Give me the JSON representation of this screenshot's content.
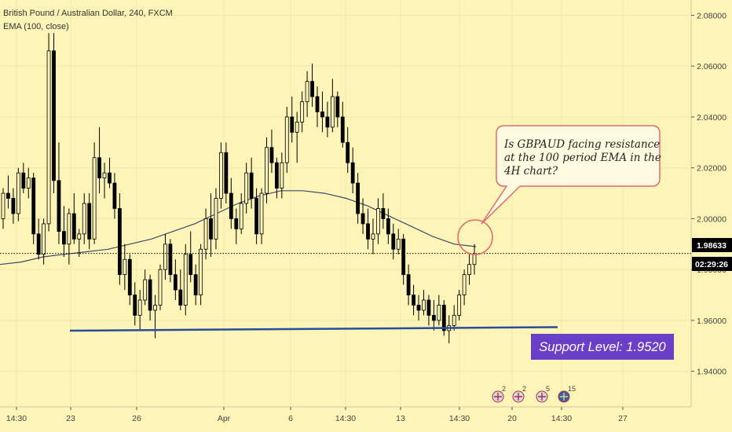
{
  "legend": {
    "symbol_line": "British Pound / Australian Dollar, 240, FXCM",
    "indicator_line": "EMA (100, close)"
  },
  "price_axis": {
    "ticks": [
      "2.08000",
      "2.06000",
      "2.04000",
      "2.02000",
      "2.00000",
      "1.98000",
      "1.96000",
      "1.94000"
    ],
    "current_price_label": "1.98633",
    "countdown_label": "02:29:26"
  },
  "time_axis": {
    "ticks": [
      "14:30",
      "23",
      "26",
      "Apr",
      "6",
      "14:30",
      "13",
      "14:30",
      "20",
      "14:30",
      "27"
    ]
  },
  "callout": {
    "lines": [
      "Is GBPAUD facing resistance",
      "at the 100 period EMA in the",
      "4H chart?"
    ]
  },
  "support_label": "Support Level: 1.9520",
  "event_markers": [
    "2",
    "2",
    "5",
    "15"
  ],
  "colors": {
    "background": "#fdf4b8",
    "candle": "#000000",
    "ema": "#3d4a6b",
    "support_line": "#2b4c9c",
    "support_box": "#6a3ec7",
    "callout_border": "#e06b6b",
    "price_line": "#000000",
    "axis_tag": "#000000"
  },
  "chart_data": {
    "type": "candlestick",
    "title": "British Pound / Australian Dollar, 240, FXCM",
    "ylim": [
      1.925,
      2.085
    ],
    "y_ticks": [
      2.08,
      2.06,
      2.04,
      2.02,
      2.0,
      1.98,
      1.96,
      1.94
    ],
    "current_price": 1.98633,
    "support_level": 1.952,
    "ema_period": 100,
    "candles": [
      [
        2.0,
        2.012,
        1.996,
        2.01
      ],
      [
        2.01,
        2.017,
        2.004,
        2.008
      ],
      [
        2.008,
        2.012,
        1.998,
        2.002
      ],
      [
        2.002,
        2.02,
        1.999,
        2.018
      ],
      [
        2.018,
        2.022,
        2.01,
        2.012
      ],
      [
        2.012,
        2.02,
        2.008,
        2.016
      ],
      [
        2.016,
        2.018,
        1.99,
        1.994
      ],
      [
        1.994,
        2.0,
        1.984,
        1.986
      ],
      [
        1.986,
        2.0,
        1.982,
        1.998
      ],
      [
        1.998,
        2.073,
        1.995,
        2.066
      ],
      [
        2.066,
        2.073,
        2.01,
        2.015
      ],
      [
        2.015,
        2.03,
        1.99,
        1.995
      ],
      [
        1.995,
        2.005,
        1.985,
        1.99
      ],
      [
        1.99,
        2.004,
        1.982,
        2.002
      ],
      [
        2.002,
        2.01,
        1.99,
        1.992
      ],
      [
        1.992,
        1.996,
        1.985,
        1.994
      ],
      [
        1.994,
        2.01,
        1.99,
        2.006
      ],
      [
        2.006,
        2.01,
        1.988,
        1.992
      ],
      [
        1.992,
        2.03,
        1.99,
        2.024
      ],
      [
        2.024,
        2.036,
        2.01,
        2.016
      ],
      [
        2.016,
        2.022,
        2.008,
        2.018
      ],
      [
        2.018,
        2.024,
        2.012,
        2.014
      ],
      [
        2.014,
        2.018,
        2.0,
        2.004
      ],
      [
        2.004,
        2.01,
        1.974,
        1.978
      ],
      [
        1.978,
        1.99,
        1.972,
        1.984
      ],
      [
        1.984,
        1.986,
        1.966,
        1.97
      ],
      [
        1.97,
        1.975,
        1.958,
        1.962
      ],
      [
        1.962,
        1.972,
        1.956,
        1.968
      ],
      [
        1.968,
        1.98,
        1.966,
        1.976
      ],
      [
        1.976,
        1.978,
        1.96,
        1.964
      ],
      [
        1.964,
        1.97,
        1.953,
        1.966
      ],
      [
        1.966,
        1.982,
        1.964,
        1.98
      ],
      [
        1.98,
        1.994,
        1.976,
        1.99
      ],
      [
        1.99,
        1.992,
        1.975,
        1.978
      ],
      [
        1.978,
        1.984,
        1.968,
        1.972
      ],
      [
        1.972,
        1.98,
        1.964,
        1.966
      ],
      [
        1.966,
        1.99,
        1.962,
        1.986
      ],
      [
        1.986,
        1.995,
        1.975,
        1.978
      ],
      [
        1.978,
        1.982,
        1.966,
        1.97
      ],
      [
        1.97,
        1.99,
        1.966,
        1.988
      ],
      [
        1.988,
        2.004,
        1.984,
        2.0
      ],
      [
        2.0,
        2.01,
        1.985,
        1.992
      ],
      [
        1.992,
        2.012,
        1.988,
        2.008
      ],
      [
        2.008,
        2.03,
        2.004,
        2.026
      ],
      [
        2.026,
        2.03,
        2.006,
        2.01
      ],
      [
        2.01,
        2.016,
        1.996,
        2.0
      ],
      [
        2.0,
        2.004,
        1.99,
        1.996
      ],
      [
        1.996,
        2.01,
        1.994,
        2.006
      ],
      [
        2.006,
        2.022,
        2.002,
        2.018
      ],
      [
        2.018,
        2.024,
        2.004,
        2.008
      ],
      [
        2.008,
        2.012,
        1.99,
        1.994
      ],
      [
        1.994,
        2.012,
        1.99,
        2.01
      ],
      [
        2.01,
        2.032,
        2.006,
        2.028
      ],
      [
        2.028,
        2.035,
        2.018,
        2.022
      ],
      [
        2.022,
        2.024,
        2.008,
        2.012
      ],
      [
        2.012,
        2.026,
        2.008,
        2.022
      ],
      [
        2.022,
        2.044,
        2.018,
        2.04
      ],
      [
        2.04,
        2.048,
        2.03,
        2.034
      ],
      [
        2.034,
        2.042,
        2.022,
        2.038
      ],
      [
        2.038,
        2.05,
        2.034,
        2.046
      ],
      [
        2.046,
        2.058,
        2.04,
        2.054
      ],
      [
        2.054,
        2.061,
        2.044,
        2.048
      ],
      [
        2.048,
        2.052,
        2.036,
        2.042
      ],
      [
        2.042,
        2.05,
        2.034,
        2.04
      ],
      [
        2.04,
        2.046,
        2.032,
        2.036
      ],
      [
        2.036,
        2.055,
        2.034,
        2.048
      ],
      [
        2.048,
        2.05,
        2.036,
        2.04
      ],
      [
        2.04,
        2.046,
        2.028,
        2.03
      ],
      [
        2.03,
        2.036,
        2.018,
        2.022
      ],
      [
        2.022,
        2.028,
        2.01,
        2.014
      ],
      [
        2.014,
        2.018,
        1.998,
        2.002
      ],
      [
        2.002,
        2.008,
        1.994,
        1.998
      ],
      [
        1.998,
        2.004,
        1.988,
        1.992
      ],
      [
        1.992,
        2.0,
        1.986,
        1.994
      ],
      [
        1.994,
        2.008,
        1.99,
        2.004
      ],
      [
        2.004,
        2.01,
        1.996,
        2.0
      ],
      [
        2.0,
        2.004,
        1.99,
        1.994
      ],
      [
        1.994,
        1.998,
        1.984,
        1.988
      ],
      [
        1.988,
        1.996,
        1.986,
        1.992
      ],
      [
        1.992,
        1.994,
        1.974,
        1.978
      ],
      [
        1.978,
        1.982,
        1.966,
        1.97
      ],
      [
        1.97,
        1.974,
        1.962,
        1.966
      ],
      [
        1.966,
        1.97,
        1.96,
        1.964
      ],
      [
        1.964,
        1.972,
        1.962,
        1.968
      ],
      [
        1.968,
        1.97,
        1.958,
        1.962
      ],
      [
        1.962,
        1.968,
        1.956,
        1.96
      ],
      [
        1.96,
        1.97,
        1.958,
        1.966
      ],
      [
        1.966,
        1.968,
        1.954,
        1.956
      ],
      [
        1.956,
        1.962,
        1.951,
        1.958
      ],
      [
        1.958,
        1.966,
        1.956,
        1.962
      ],
      [
        1.962,
        1.972,
        1.96,
        1.97
      ],
      [
        1.97,
        1.98,
        1.966,
        1.978
      ],
      [
        1.978,
        1.986,
        1.974,
        1.982
      ],
      [
        1.982,
        1.99,
        1.978,
        1.986
      ]
    ],
    "ema": [
      1.982,
      1.983,
      1.985,
      1.986,
      1.987,
      1.988,
      1.99,
      1.992,
      1.995,
      1.998,
      2.002,
      2.006,
      2.009,
      2.011,
      2.011,
      2.01,
      2.008,
      2.005,
      2.001,
      1.997,
      1.993,
      1.99,
      1.989
    ]
  }
}
